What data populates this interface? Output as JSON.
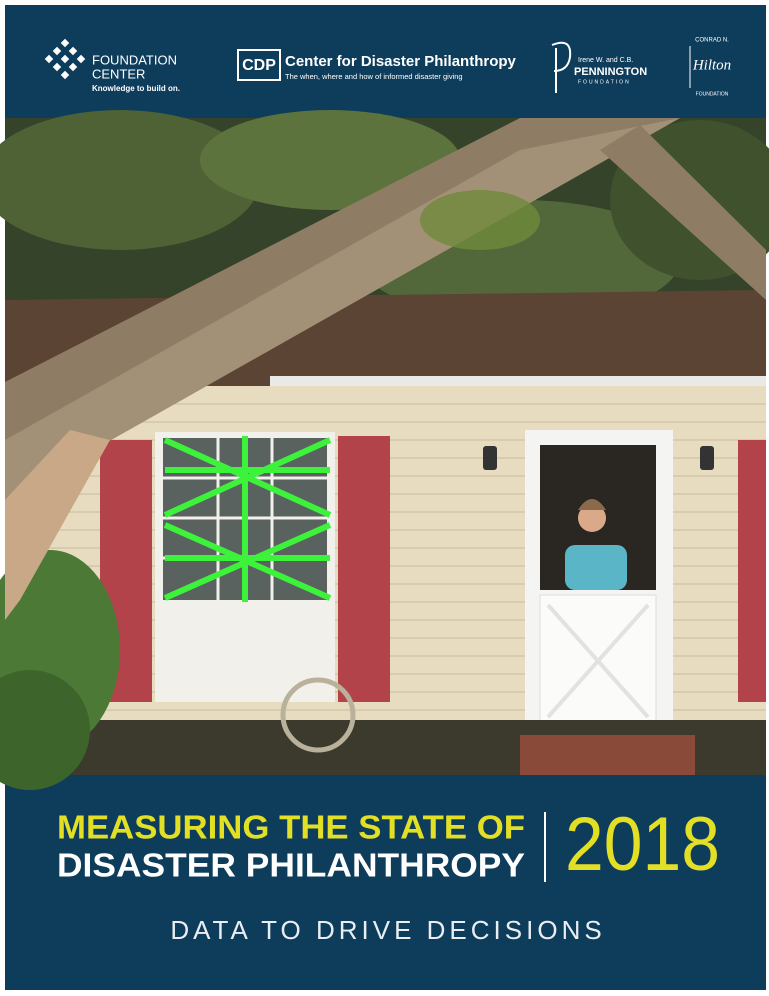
{
  "logos": [
    {
      "mark": "",
      "lines": [
        "FOUNDATION",
        "CENTER"
      ],
      "tagline": "Knowledge to build on."
    },
    {
      "mark": "CDP",
      "lines": [
        "Center for Disaster Philanthropy"
      ],
      "tagline": "The when, where and how of informed disaster giving"
    },
    {
      "mark": "",
      "lines": [
        "Irene W. and C.B.",
        "PENNINGTON"
      ],
      "tagline": "FOUNDATION"
    },
    {
      "mark": "Hilton",
      "lines": [
        "CONRAD N."
      ],
      "tagline": "FOUNDATION"
    }
  ],
  "title": {
    "line1": "MEASURING THE STATE OF",
    "line2": "DISASTER PHILANTHROPY",
    "year": "2018"
  },
  "subtitle": "DATA TO DRIVE DECISIONS"
}
